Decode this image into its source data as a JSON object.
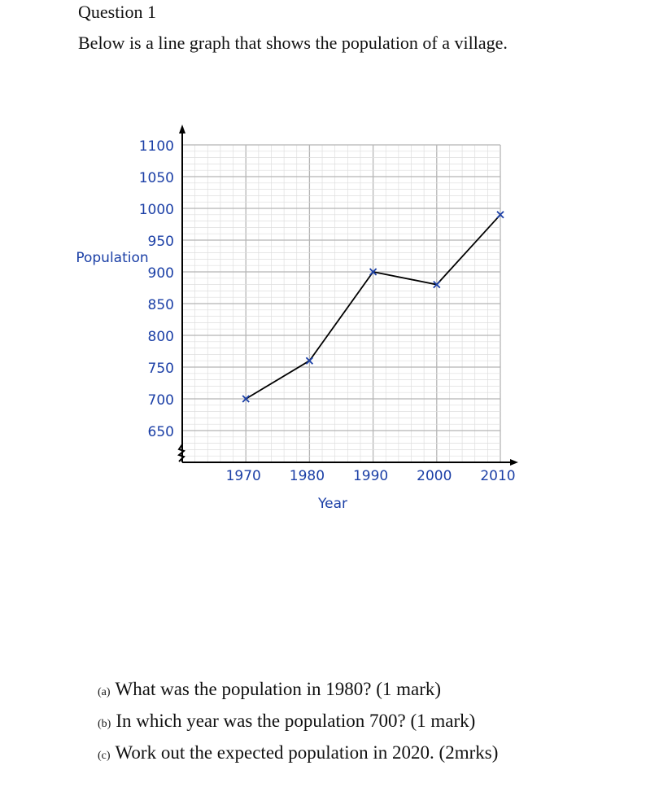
{
  "question": {
    "heading": "Question 1",
    "intro": "Below is a line graph that shows the population of a village."
  },
  "chart_data": {
    "type": "line",
    "title": "",
    "xlabel": "Year",
    "ylabel": "Population",
    "x": [
      1970,
      1980,
      1990,
      2000,
      2010
    ],
    "series": [
      {
        "values": [
          700,
          760,
          900,
          880,
          990
        ]
      }
    ],
    "xticks": [
      "1970",
      "1980",
      "1990",
      "2000",
      "2010"
    ],
    "yticks": [
      "650",
      "700",
      "750",
      "800",
      "850",
      "900",
      "950",
      "1000",
      "1050",
      "1100"
    ],
    "xlim": [
      1960,
      2010
    ],
    "ylim": [
      600,
      1100
    ],
    "axis_break": true,
    "grid": true,
    "marker": "x",
    "colors": {
      "line": "#000000",
      "marker": "#1b3fa6",
      "labels": "#1b3fa6",
      "grid": "#bfbfbf"
    }
  },
  "parts": [
    {
      "letter": "(a)",
      "text": "What was the population in 1980? (1 mark)"
    },
    {
      "letter": "(b)",
      "text": "In which year was the population 700? (1 mark)"
    },
    {
      "letter": "(c)",
      "text": "Work out the expected population in 2020. (2mrks)"
    }
  ]
}
